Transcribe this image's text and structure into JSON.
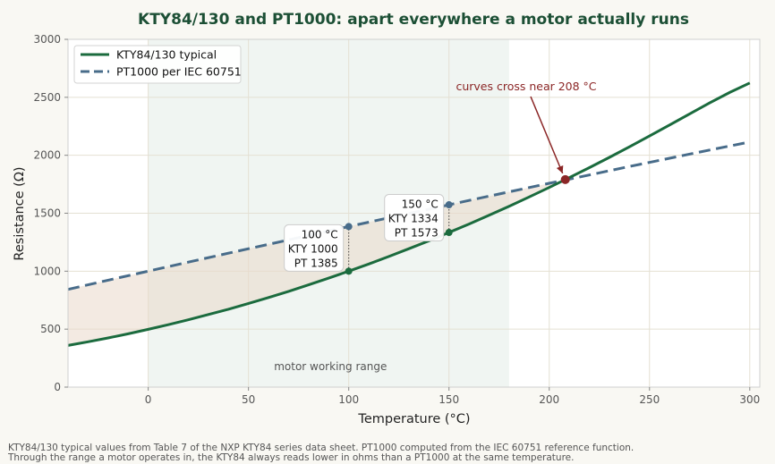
{
  "chart_data": {
    "type": "line",
    "title": "KTY84/130 and PT1000: apart everywhere a motor actually runs",
    "xlabel": "Temperature (°C)",
    "ylabel": "Resistance (Ω)",
    "xlim": [
      -40,
      305
    ],
    "ylim": [
      0,
      3000
    ],
    "xticks": [
      0,
      50,
      100,
      150,
      200,
      250,
      300
    ],
    "yticks": [
      0,
      500,
      1000,
      1500,
      2000,
      2500,
      3000
    ],
    "grid": true,
    "legend_position": "top-left",
    "working_range": {
      "x": [
        0,
        180
      ],
      "label": "motor working range"
    },
    "series": [
      {
        "name": "KTY84/130 typical",
        "style": "solid",
        "color": "#1b6b3e",
        "x": [
          -40,
          -30,
          -20,
          -10,
          0,
          10,
          20,
          30,
          40,
          50,
          60,
          70,
          80,
          90,
          100,
          110,
          120,
          130,
          140,
          150,
          160,
          170,
          180,
          190,
          200,
          210,
          220,
          230,
          240,
          250,
          260,
          270,
          280,
          290,
          300
        ],
        "values": [
          359,
          391,
          424,
          460,
          498,
          538,
          581,
          626,
          672,
          722,
          773,
          826,
          882,
          940,
          1000,
          1062,
          1127,
          1194,
          1262,
          1334,
          1407,
          1482,
          1560,
          1640,
          1722,
          1807,
          1893,
          1982,
          2073,
          2166,
          2261,
          2357,
          2452,
          2542,
          2624
        ]
      },
      {
        "name": "PT1000 per IEC 60751",
        "style": "dashed",
        "color": "#486c8a",
        "x": [
          -40,
          -20,
          0,
          20,
          40,
          60,
          80,
          100,
          120,
          140,
          160,
          180,
          200,
          220,
          240,
          260,
          280,
          300
        ],
        "values": [
          843,
          922,
          1000,
          1078,
          1155,
          1232,
          1309,
          1385,
          1461,
          1535,
          1610,
          1684,
          1758,
          1830,
          1903,
          1974,
          2045,
          2115
        ]
      }
    ],
    "annotations": [
      {
        "x": 100,
        "lines": [
          "100 °C",
          "KTY 1000",
          "PT 1385"
        ],
        "kty": 1000,
        "pt": 1385
      },
      {
        "x": 150,
        "lines": [
          "150 °C",
          "KTY 1334",
          "PT 1573"
        ],
        "kty": 1334,
        "pt": 1573
      }
    ],
    "crossover": {
      "x": 208,
      "y": 1790,
      "label": "curves cross near 208 °C"
    }
  },
  "colors": {
    "kty": "#1b6b3e",
    "pt": "#486c8a",
    "cross": "#8b2626",
    "band": "#e6eeea",
    "fill": "#ead9cb",
    "title": "#1c4f35"
  },
  "footnote": [
    "KTY84/130 typical values from Table 7 of the NXP KTY84 series data sheet. PT1000 computed from the IEC 60751 reference function.",
    "Through the range a motor operates in, the KTY84 always reads lower in ohms than a PT1000 at the same temperature."
  ]
}
